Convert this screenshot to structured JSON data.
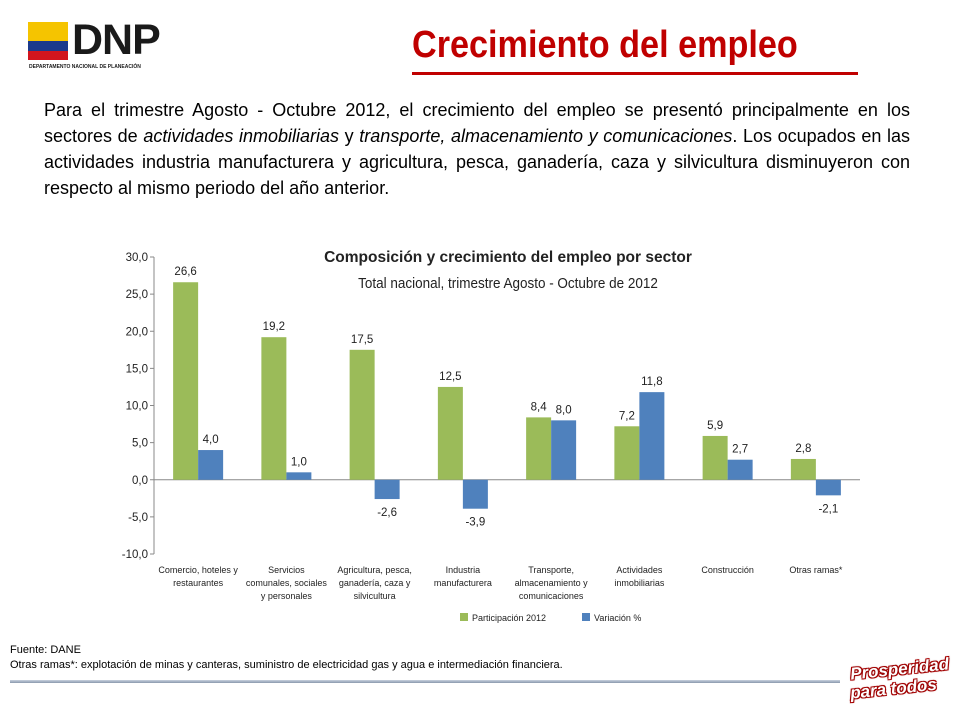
{
  "logo": {
    "word": "DNP",
    "subtitle": "DEPARTAMENTO NACIONAL DE PLANEACIÓN",
    "flag_colors": [
      "#f5c400",
      "#1b3a8c",
      "#d2151e"
    ]
  },
  "slide": {
    "title": "Crecimiento del empleo",
    "title_color": "#c00000",
    "intro": [
      {
        "text": "Para el trimestre Agosto - Octubre 2012, el crecimiento del empleo se presentó principalmente en los sectores de ",
        "italic": false
      },
      {
        "text": "actividades inmobiliarias",
        "italic": true
      },
      {
        "text": " y ",
        "italic": false
      },
      {
        "text": "transporte, almacenamiento y comunicaciones",
        "italic": true
      },
      {
        "text": ". Los ocupados en las actividades industria manufacturera y agricultura, pesca, ganadería, caza y silvicultura disminuyeron con respecto al mismo periodo del año anterior.",
        "italic": false
      }
    ]
  },
  "chart_data": {
    "type": "bar",
    "title": "Composición y crecimiento del empleo por sector",
    "subtitle": "Total nacional, trimestre Agosto - Octubre de 2012",
    "ylim": [
      -10,
      30
    ],
    "yticks": [
      "30,0",
      "25,0",
      "20,0",
      "15,0",
      "10,0",
      "5,0",
      "0,0",
      "-5,0",
      "-10,0"
    ],
    "categories": [
      [
        "Comercio, hoteles y",
        "restaurantes"
      ],
      [
        "Servicios",
        "comunales, sociales",
        "y personales"
      ],
      [
        "Agricultura, pesca,",
        "ganadería, caza y",
        "silvicultura"
      ],
      [
        "Industria",
        "manufacturera"
      ],
      [
        "Transporte,",
        "almacenamiento y",
        "comunicaciones"
      ],
      [
        "Actividades",
        "inmobiliarias"
      ],
      [
        "Construcción"
      ],
      [
        "Otras ramas*"
      ]
    ],
    "series": [
      {
        "name": "Participación 2012",
        "color": "#9bbb59",
        "values": [
          26.6,
          19.2,
          17.5,
          12.5,
          8.4,
          7.2,
          5.9,
          2.8
        ],
        "labels": [
          "26,6",
          "19,2",
          "17,5",
          "12,5",
          "8,4",
          "7,2",
          "5,9",
          "2,8"
        ]
      },
      {
        "name": "Variación %",
        "color": "#4f81bd",
        "values": [
          4.0,
          1.0,
          -2.6,
          -3.9,
          8.0,
          11.8,
          2.7,
          -2.1
        ],
        "labels": [
          "4,0",
          "1,0",
          "-2,6",
          "-3,9",
          "8,0",
          "11,8",
          "2,7",
          "-2,1"
        ]
      }
    ],
    "legend_position": "bottom",
    "grid": false
  },
  "footer": {
    "source": "Fuente: DANE",
    "note": "Otras ramas*: explotación de minas y canteras, suministro de electricidad gas y agua e intermediación financiera."
  },
  "badge": {
    "line1": "Prosperidad",
    "line2": "para todos",
    "color": "#d2151e"
  }
}
